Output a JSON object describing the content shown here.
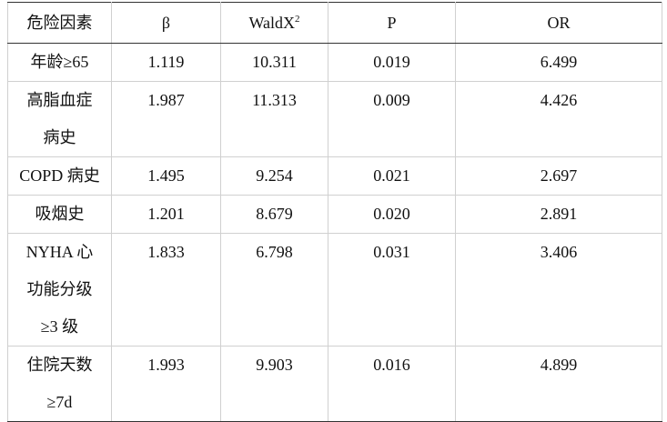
{
  "table": {
    "columns": [
      "危险因素",
      "β",
      {
        "text": "WaldX",
        "sup": "2"
      },
      "P",
      "OR"
    ],
    "rows": [
      {
        "factor": [
          "年龄≥65"
        ],
        "beta": "1.119",
        "wald": "10.311",
        "p": "0.019",
        "or": "6.499"
      },
      {
        "factor": [
          "高脂血症",
          "病史"
        ],
        "beta": "1.987",
        "wald": "11.313",
        "p": "0.009",
        "or": "4.426"
      },
      {
        "factor": [
          "COPD 病史"
        ],
        "beta": "1.495",
        "wald": "9.254",
        "p": "0.021",
        "or": "2.697"
      },
      {
        "factor": [
          "吸烟史"
        ],
        "beta": "1.201",
        "wald": "8.679",
        "p": "0.020",
        "or": "2.891"
      },
      {
        "factor": [
          "NYHA 心",
          "功能分级",
          "≥3 级"
        ],
        "beta": "1.833",
        "wald": "6.798",
        "p": "0.031",
        "or": "3.406"
      },
      {
        "factor": [
          "住院天数",
          "≥7d"
        ],
        "beta": "1.993",
        "wald": "9.903",
        "p": "0.016",
        "or": "4.899"
      }
    ]
  }
}
